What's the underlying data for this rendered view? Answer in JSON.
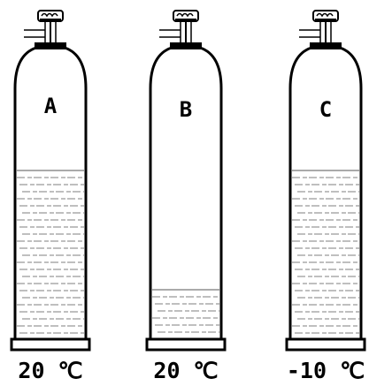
{
  "cylinders": [
    {
      "label": "A",
      "temperature": "20 ℃"
    },
    {
      "label": "B",
      "temperature": "20 ℃"
    },
    {
      "label": "C",
      "temperature": "-10 ℃"
    }
  ]
}
